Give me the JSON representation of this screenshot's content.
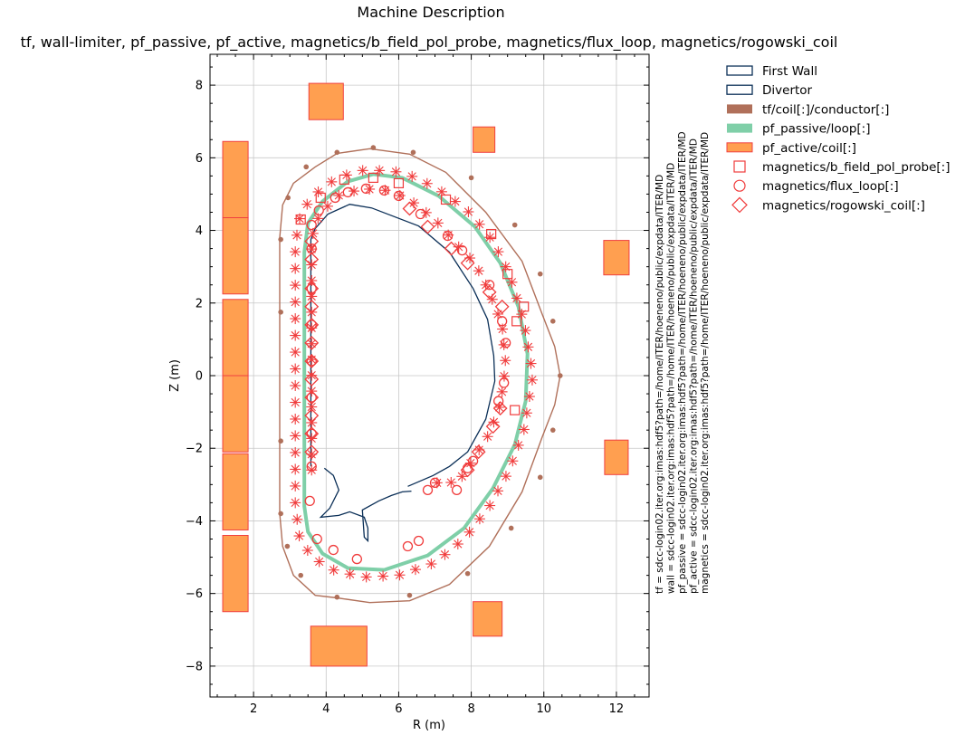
{
  "figure": {
    "suptitle": "Machine Description",
    "title": "tf, wall-limiter, pf_passive, pf_active, magnetics/b_field_pol_probe, magnetics/flux_loop, magnetics/rogowski_coil",
    "xlabel": "R (m)",
    "ylabel": "Z (m)",
    "side_text": [
      "tf = sdcc-login02.iter.org:imas:hdf5?path=/home/ITER/hoeneno/public/expdata/ITER/MD",
      "wall = sdcc-login02.iter.org:imas:hdf5?path=/home/ITER/hoeneno/public/expdata/ITER/MD",
      "pf_passive = sdcc-login02.iter.org:imas:hdf5?path=/home/ITER/hoeneno/public/expdata/ITER/MD",
      "pf_active = sdcc-login02.iter.org:imas:hdf5?path=/home/ITER/hoeneno/public/expdata/ITER/MD",
      "magnetics = sdcc-login02.iter.org:imas:hdf5?path=/home/ITER/hoeneno/public/expdata/ITER/MD"
    ]
  },
  "legend": [
    {
      "label": "First Wall",
      "kind": "box-outline",
      "color": "#0b2f57"
    },
    {
      "label": "Divertor",
      "kind": "box-outline",
      "color": "#0b2f57"
    },
    {
      "label": "tf/coil[:]/conductor[:]",
      "kind": "box-filled",
      "color": "#b0705a"
    },
    {
      "label": "pf_passive/loop[:]",
      "kind": "box-filled",
      "color": "#7fcfa8"
    },
    {
      "label": "pf_active/coil[:]",
      "kind": "box-filled",
      "color": "#ff9f50"
    },
    {
      "label": "magnetics/b_field_pol_probe[:]",
      "kind": "square",
      "color": "#f03c3c"
    },
    {
      "label": "magnetics/flux_loop[:]",
      "kind": "circle",
      "color": "#f03c3c"
    },
    {
      "label": "magnetics/rogowski_coil[:]",
      "kind": "diamond",
      "color": "#f03c3c"
    }
  ],
  "chart_data": {
    "type": "scatter",
    "xlim": [
      0.8,
      12.9
    ],
    "ylim": [
      -8.85,
      8.85
    ],
    "xticks": [
      2,
      4,
      6,
      8,
      10,
      12
    ],
    "yticks": [
      -8,
      -6,
      -4,
      -2,
      0,
      2,
      4,
      6,
      8
    ],
    "grid": true,
    "legend_location": "outside right",
    "colors": {
      "wall": "#0b2f57",
      "tf": "#b0705a",
      "pf_passive": "#7fcfa8",
      "pf_active_fill": "#ff9f50",
      "pf_active_edge": "#f04040",
      "magnetics": "#f03c3c"
    },
    "first_wall": [
      [
        3.58,
        -2.5
      ],
      [
        3.58,
        3.75
      ],
      [
        3.7,
        4.05
      ],
      [
        4.05,
        4.45
      ],
      [
        4.65,
        4.72
      ],
      [
        5.25,
        4.62
      ],
      [
        6.55,
        4.12
      ],
      [
        7.4,
        3.4
      ],
      [
        8.05,
        2.4
      ],
      [
        8.45,
        1.55
      ],
      [
        8.62,
        0.55
      ],
      [
        8.65,
        -0.15
      ],
      [
        8.4,
        -1.2
      ],
      [
        7.9,
        -2.1
      ],
      [
        7.4,
        -2.5
      ],
      [
        6.95,
        -2.75
      ],
      [
        6.25,
        -3.05
      ]
    ],
    "divertor": [
      [
        [
          3.95,
          -2.55
        ],
        [
          4.2,
          -2.75
        ],
        [
          4.35,
          -3.15
        ],
        [
          4.1,
          -3.65
        ],
        [
          3.85,
          -3.9
        ],
        [
          4.35,
          -3.85
        ],
        [
          4.65,
          -3.75
        ],
        [
          5.05,
          -3.9
        ],
        [
          5.15,
          -4.2
        ],
        [
          5.15,
          -4.55
        ],
        [
          5.05,
          -4.45
        ],
        [
          5.0,
          -3.7
        ],
        [
          5.45,
          -3.45
        ],
        [
          5.8,
          -3.3
        ],
        [
          6.1,
          -3.2
        ],
        [
          6.35,
          -3.18
        ]
      ]
    ],
    "tf_outline": [
      [
        2.72,
        -1.8
      ],
      [
        2.72,
        -3.8
      ],
      [
        2.8,
        -4.7
      ],
      [
        3.1,
        -5.5
      ],
      [
        3.7,
        -6.05
      ],
      [
        4.3,
        -6.12
      ],
      [
        5.2,
        -6.25
      ],
      [
        6.3,
        -6.2
      ],
      [
        7.4,
        -5.75
      ],
      [
        8.5,
        -4.7
      ],
      [
        9.4,
        -3.2
      ],
      [
        9.95,
        -1.7
      ],
      [
        10.3,
        -0.8
      ],
      [
        10.45,
        0
      ],
      [
        10.3,
        0.8
      ],
      [
        9.95,
        1.7
      ],
      [
        9.4,
        3.15
      ],
      [
        8.4,
        4.5
      ],
      [
        7.3,
        5.6
      ],
      [
        6.3,
        6.1
      ],
      [
        5.2,
        6.25
      ],
      [
        4.3,
        6.12
      ],
      [
        3.7,
        5.75
      ],
      [
        3.1,
        5.3
      ],
      [
        2.8,
        4.7
      ],
      [
        2.72,
        3.8
      ],
      [
        2.72,
        1.8
      ],
      [
        2.72,
        -1.8
      ]
    ],
    "tf_points": [
      [
        2.75,
        -1.8
      ],
      [
        2.75,
        -3.8
      ],
      [
        2.93,
        -4.7
      ],
      [
        3.3,
        -5.5
      ],
      [
        4.3,
        -6.1
      ],
      [
        6.3,
        -6.05
      ],
      [
        7.9,
        -5.45
      ],
      [
        9.1,
        -4.2
      ],
      [
        9.9,
        -2.8
      ],
      [
        10.25,
        -1.5
      ],
      [
        10.45,
        0
      ],
      [
        10.25,
        1.5
      ],
      [
        9.9,
        2.8
      ],
      [
        9.2,
        4.15
      ],
      [
        8.0,
        5.45
      ],
      [
        6.4,
        6.15
      ],
      [
        5.3,
        6.28
      ],
      [
        4.3,
        6.15
      ],
      [
        3.45,
        5.75
      ],
      [
        2.95,
        4.9
      ],
      [
        2.75,
        3.75
      ],
      [
        2.75,
        1.75
      ]
    ],
    "pf_passive": [
      [
        3.4,
        -3.0
      ],
      [
        3.4,
        3.4
      ],
      [
        3.5,
        4.2
      ],
      [
        3.9,
        4.8
      ],
      [
        4.6,
        5.35
      ],
      [
        5.3,
        5.55
      ],
      [
        6.1,
        5.45
      ],
      [
        7.1,
        4.95
      ],
      [
        8.1,
        4.1
      ],
      [
        8.8,
        3.1
      ],
      [
        9.3,
        1.9
      ],
      [
        9.55,
        0.6
      ],
      [
        9.5,
        -0.7
      ],
      [
        9.2,
        -1.9
      ],
      [
        8.6,
        -3.1
      ],
      [
        7.8,
        -4.2
      ],
      [
        6.8,
        -4.95
      ],
      [
        5.6,
        -5.35
      ],
      [
        4.6,
        -5.3
      ],
      [
        3.9,
        -4.9
      ],
      [
        3.5,
        -4.3
      ],
      [
        3.4,
        -3.6
      ],
      [
        3.4,
        -3.0
      ]
    ],
    "pf_active": [
      {
        "r": 1.5,
        "z": 5.4,
        "w": 0.7,
        "h": 2.1
      },
      {
        "r": 1.5,
        "z": 3.3,
        "w": 0.7,
        "h": 2.1
      },
      {
        "r": 1.5,
        "z": 1.05,
        "w": 0.7,
        "h": 2.1
      },
      {
        "r": 1.5,
        "z": -1.05,
        "w": 0.7,
        "h": 2.1
      },
      {
        "r": 1.5,
        "z": -3.2,
        "w": 0.7,
        "h": 2.1
      },
      {
        "r": 1.5,
        "z": -5.45,
        "w": 0.7,
        "h": 2.1
      },
      {
        "r": 4.0,
        "z": 7.55,
        "w": 0.95,
        "h": 1.0
      },
      {
        "r": 8.35,
        "z": 6.5,
        "w": 0.6,
        "h": 0.7
      },
      {
        "r": 12.0,
        "z": 3.25,
        "w": 0.7,
        "h": 0.95
      },
      {
        "r": 12.0,
        "z": -2.25,
        "w": 0.65,
        "h": 0.95
      },
      {
        "r": 4.35,
        "z": -7.45,
        "w": 1.55,
        "h": 1.1
      },
      {
        "r": 8.45,
        "z": -6.7,
        "w": 0.8,
        "h": 0.95
      }
    ],
    "b_field_pol_probe_ring": [
      [
        3.15,
        -3.5
      ],
      [
        3.15,
        3.6
      ],
      [
        3.3,
        4.5
      ],
      [
        3.7,
        5.0
      ],
      [
        4.3,
        5.45
      ],
      [
        5.0,
        5.65
      ],
      [
        5.8,
        5.65
      ],
      [
        6.5,
        5.45
      ],
      [
        7.3,
        5.0
      ],
      [
        8.0,
        4.45
      ],
      [
        8.6,
        3.7
      ],
      [
        9.05,
        2.8
      ],
      [
        9.45,
        1.5
      ],
      [
        9.7,
        0
      ],
      [
        9.45,
        -1.5
      ],
      [
        9.05,
        -2.6
      ],
      [
        8.5,
        -3.6
      ],
      [
        7.8,
        -4.5
      ],
      [
        7.0,
        -5.15
      ],
      [
        6.0,
        -5.5
      ],
      [
        5.0,
        -5.55
      ],
      [
        4.2,
        -5.35
      ],
      [
        3.6,
        -5.0
      ],
      [
        3.25,
        -4.4
      ],
      [
        3.15,
        -3.5
      ]
    ],
    "inner_probe_ring": [
      [
        3.6,
        -2.6
      ],
      [
        3.6,
        3.8
      ],
      [
        3.8,
        4.4
      ],
      [
        4.3,
        4.95
      ],
      [
        5.0,
        5.15
      ],
      [
        5.7,
        5.1
      ],
      [
        6.3,
        4.85
      ],
      [
        7.0,
        4.3
      ],
      [
        7.6,
        3.6
      ],
      [
        8.1,
        3.1
      ],
      [
        8.5,
        2.3
      ],
      [
        8.85,
        1.4
      ],
      [
        8.95,
        0.3
      ],
      [
        8.8,
        -0.8
      ],
      [
        8.5,
        -1.6
      ],
      [
        8.05,
        -2.3
      ],
      [
        7.6,
        -3.0
      ],
      [
        7.2,
        -2.85
      ],
      [
        6.7,
        -3.2
      ]
    ],
    "flux_loops": [
      [
        3.55,
        -3.45
      ],
      [
        3.75,
        -4.5
      ],
      [
        4.2,
        -4.8
      ],
      [
        4.85,
        -5.05
      ],
      [
        6.25,
        -4.7
      ],
      [
        6.55,
        -4.55
      ],
      [
        7.6,
        -3.15
      ],
      [
        7.9,
        -2.55
      ],
      [
        8.05,
        -2.35
      ],
      [
        7.0,
        -2.95
      ],
      [
        6.8,
        -3.15
      ],
      [
        8.75,
        -0.7
      ],
      [
        8.9,
        -0.2
      ],
      [
        8.95,
        0.9
      ],
      [
        8.85,
        1.5
      ],
      [
        8.5,
        2.5
      ],
      [
        7.75,
        3.45
      ],
      [
        7.35,
        3.85
      ],
      [
        6.6,
        4.45
      ],
      [
        6.0,
        4.95
      ],
      [
        5.6,
        5.1
      ],
      [
        5.1,
        5.15
      ],
      [
        4.6,
        5.05
      ],
      [
        4.25,
        4.9
      ],
      [
        3.8,
        4.55
      ],
      [
        3.6,
        4.15
      ],
      [
        3.6,
        3.5
      ],
      [
        3.6,
        2.4
      ],
      [
        3.6,
        1.4
      ],
      [
        3.6,
        0.4
      ],
      [
        3.6,
        -0.6
      ],
      [
        3.6,
        -1.6
      ],
      [
        3.6,
        -2.5
      ]
    ],
    "rogowski_coils": [
      [
        3.6,
        3.2
      ],
      [
        3.6,
        2.4
      ],
      [
        3.6,
        1.9
      ],
      [
        3.6,
        1.4
      ],
      [
        3.6,
        0.9
      ],
      [
        3.6,
        0.4
      ],
      [
        3.6,
        -0.1
      ],
      [
        3.6,
        -0.6
      ],
      [
        3.6,
        -1.1
      ],
      [
        3.6,
        -1.6
      ],
      [
        3.6,
        -2.1
      ],
      [
        3.6,
        3.7
      ],
      [
        8.8,
        -0.9
      ],
      [
        8.6,
        -1.4
      ],
      [
        8.2,
        -2.1
      ],
      [
        7.9,
        -2.6
      ],
      [
        8.85,
        1.9
      ],
      [
        8.5,
        2.3
      ],
      [
        7.9,
        3.1
      ],
      [
        7.45,
        3.5
      ],
      [
        6.8,
        4.1
      ],
      [
        6.3,
        4.6
      ]
    ],
    "outer_square_probes": [
      [
        9.2,
        -0.95
      ],
      [
        9.25,
        1.5
      ],
      [
        9.45,
        1.9
      ],
      [
        9.0,
        2.8
      ],
      [
        8.55,
        3.9
      ],
      [
        7.3,
        4.85
      ],
      [
        6.0,
        5.3
      ],
      [
        5.3,
        5.45
      ],
      [
        4.5,
        5.4
      ],
      [
        3.85,
        4.9
      ],
      [
        3.3,
        4.3
      ]
    ]
  }
}
